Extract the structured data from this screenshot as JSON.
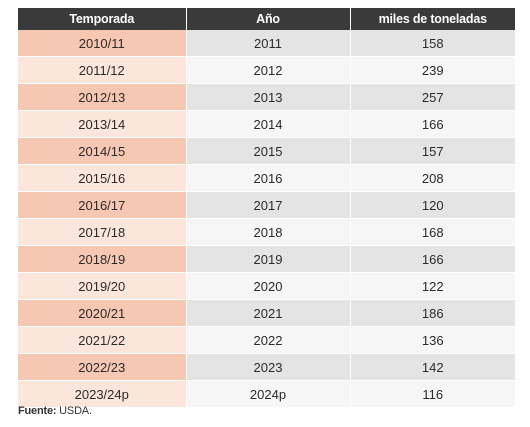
{
  "chart_data": {
    "type": "table",
    "columns": [
      "Temporada",
      "Año",
      "miles de toneladas"
    ],
    "rows": [
      [
        "2010/11",
        "2011",
        158
      ],
      [
        "2011/12",
        "2012",
        239
      ],
      [
        "2012/13",
        "2013",
        257
      ],
      [
        "2013/14",
        "2014",
        166
      ],
      [
        "2014/15",
        "2015",
        157
      ],
      [
        "2015/16",
        "2016",
        208
      ],
      [
        "2016/17",
        "2017",
        120
      ],
      [
        "2017/18",
        "2018",
        168
      ],
      [
        "2018/19",
        "2019",
        166
      ],
      [
        "2019/20",
        "2020",
        122
      ],
      [
        "2020/21",
        "2021",
        186
      ],
      [
        "2021/22",
        "2022",
        136
      ],
      [
        "2022/23",
        "2023",
        142
      ],
      [
        "2023/24p",
        "2024p",
        116
      ]
    ]
  },
  "source": {
    "label": "Fuente:",
    "text": " USDA."
  },
  "colors": {
    "header_bg": "#3a3a3a",
    "season_odd": "#f6c7b3",
    "season_even": "#fce6dc",
    "cell_odd": "#e4e4e4",
    "cell_even": "#f6f6f6"
  }
}
